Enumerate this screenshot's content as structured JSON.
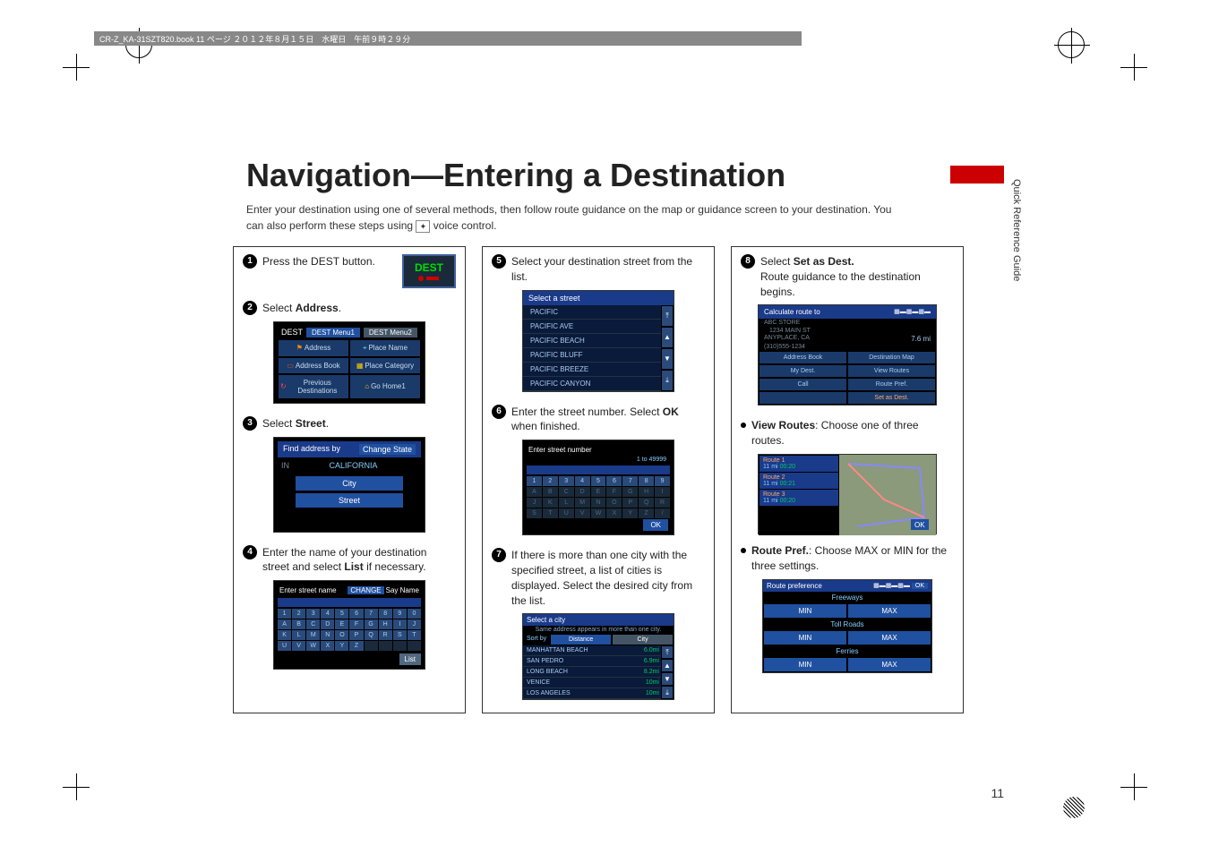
{
  "header_bar": "CR-Z_KA-31SZT820.book  11 ページ  ２０１２年８月１５日　水曜日　午前９時２９分",
  "title": "Navigation—Entering a Destination",
  "intro_line1": "Enter your destination using one of several methods, then follow route guidance on the map or guidance screen to your destination. You",
  "intro_line2": "can also perform these steps using ",
  "intro_line2b": " voice control.",
  "side_label": "Quick Reference Guide",
  "page_number": "11",
  "steps": {
    "s1": {
      "num": "1",
      "text": "Press the DEST button."
    },
    "s2": {
      "num": "2",
      "text_a": "Select ",
      "text_b": "Address",
      "text_c": "."
    },
    "s3": {
      "num": "3",
      "text_a": "Select ",
      "text_b": "Street",
      "text_c": "."
    },
    "s4": {
      "num": "4",
      "text_a": "Enter the name of your destination street and select ",
      "text_b": "List",
      "text_c": " if necessary."
    },
    "s5": {
      "num": "5",
      "text": "Select your destination street from the list."
    },
    "s6": {
      "num": "6",
      "text_a": "Enter the street number. Select ",
      "text_b": "OK",
      "text_c": " when finished."
    },
    "s7": {
      "num": "7",
      "text": "If there is more than one city with the specified street, a list of cities is displayed. Select the desired city from the list."
    },
    "s8": {
      "num": "8",
      "text_a": "Select ",
      "text_b": "Set as Dest.",
      "sub": "Route guidance to the destination begins."
    }
  },
  "bullets": {
    "b1": {
      "text_a": "View Routes",
      "text_b": ": Choose one of three routes."
    },
    "b2": {
      "text_a": "Route Pref.",
      "text_b": ": Choose MAX or MIN for the three settings."
    }
  },
  "dest_button": "DEST",
  "dest_menu": {
    "title": "DEST",
    "tab1": "DEST Menu1",
    "tab2": "DEST Menu2",
    "cells": [
      "Address",
      "Place Name",
      "Address Book",
      "Place Category",
      "Previous Destinations",
      "Go Home1"
    ]
  },
  "find_address": {
    "title": "Find address by",
    "change": "Change State",
    "state_abbr": "IN",
    "state": "CALIFORNIA",
    "city_btn": "City",
    "street_btn": "Street"
  },
  "keyboard_name": {
    "title": "Enter street name",
    "change": "CHANGE",
    "say": "Say  Name",
    "row1": [
      "1",
      "2",
      "3",
      "4",
      "5",
      "6",
      "7",
      "8",
      "9",
      "0"
    ],
    "row2": [
      "A",
      "B",
      "C",
      "D",
      "E",
      "F",
      "G",
      "H",
      "I",
      "J"
    ],
    "row3": [
      "K",
      "L",
      "M",
      "N",
      "O",
      "P",
      "Q",
      "R",
      "S",
      "T"
    ],
    "row4": [
      "U",
      "V",
      "W",
      "X",
      "Y",
      "Z"
    ],
    "list": "List"
  },
  "street_list": {
    "title": "Select a street",
    "items": [
      "PACIFIC",
      "PACIFIC AVE",
      "PACIFIC BEACH",
      "PACIFIC BLUFF",
      "PACIFIC BREEZE",
      "PACIFIC CANYON"
    ]
  },
  "keyboard_num": {
    "title": "Enter street number",
    "hint": "1 to 49999",
    "row1": [
      "1",
      "2",
      "3",
      "4",
      "5",
      "6",
      "7",
      "8",
      "9"
    ],
    "ok": "OK"
  },
  "city_list": {
    "title": "Select a city",
    "sub": "Same address appears in more than one city.",
    "sort": "Sort by",
    "tab1": "Distance",
    "tab2": "City",
    "rows": [
      {
        "name": "MANHATTAN BEACH",
        "dist": "6.0mi"
      },
      {
        "name": "SAN PEDRO",
        "dist": "6.9mi"
      },
      {
        "name": "LONG BEACH",
        "dist": "8.2mi"
      },
      {
        "name": "VENICE",
        "dist": "10mi"
      },
      {
        "name": "LOS ANGELES",
        "dist": "10mi"
      }
    ]
  },
  "calc_route": {
    "title": "Calculate route to",
    "store": "ABC STORE",
    "addr": "1234 MAIN ST",
    "city": "ANYPLACE, CA",
    "phone": "(310)555-1234",
    "dist": "7.6 mi",
    "btns": [
      "Address Book",
      "Destination Map",
      "My Dest.",
      "View Routes",
      "Call",
      "Route Pref.",
      "",
      "Set as Dest."
    ]
  },
  "routes": {
    "r1": {
      "label": "Route 1",
      "dist": "11 mi",
      "time": "00:20"
    },
    "r2": {
      "label": "Route 2",
      "dist": "11 mi",
      "time": "00:21"
    },
    "r3": {
      "label": "Route 3",
      "dist": "11 mi",
      "time": "00:20"
    },
    "ok": "OK"
  },
  "route_pref": {
    "title": "Route preference",
    "ok": "OK",
    "sections": [
      "Freeways",
      "Toll Roads",
      "Ferries"
    ],
    "min": "MIN",
    "max": "MAX"
  },
  "colors": {
    "nav_bg": "#0a1a3a",
    "nav_btn": "#2050a0",
    "nav_header": "#1a3a8a",
    "text_blue": "#ace",
    "highlight": "#fa6",
    "red": "#c00"
  }
}
